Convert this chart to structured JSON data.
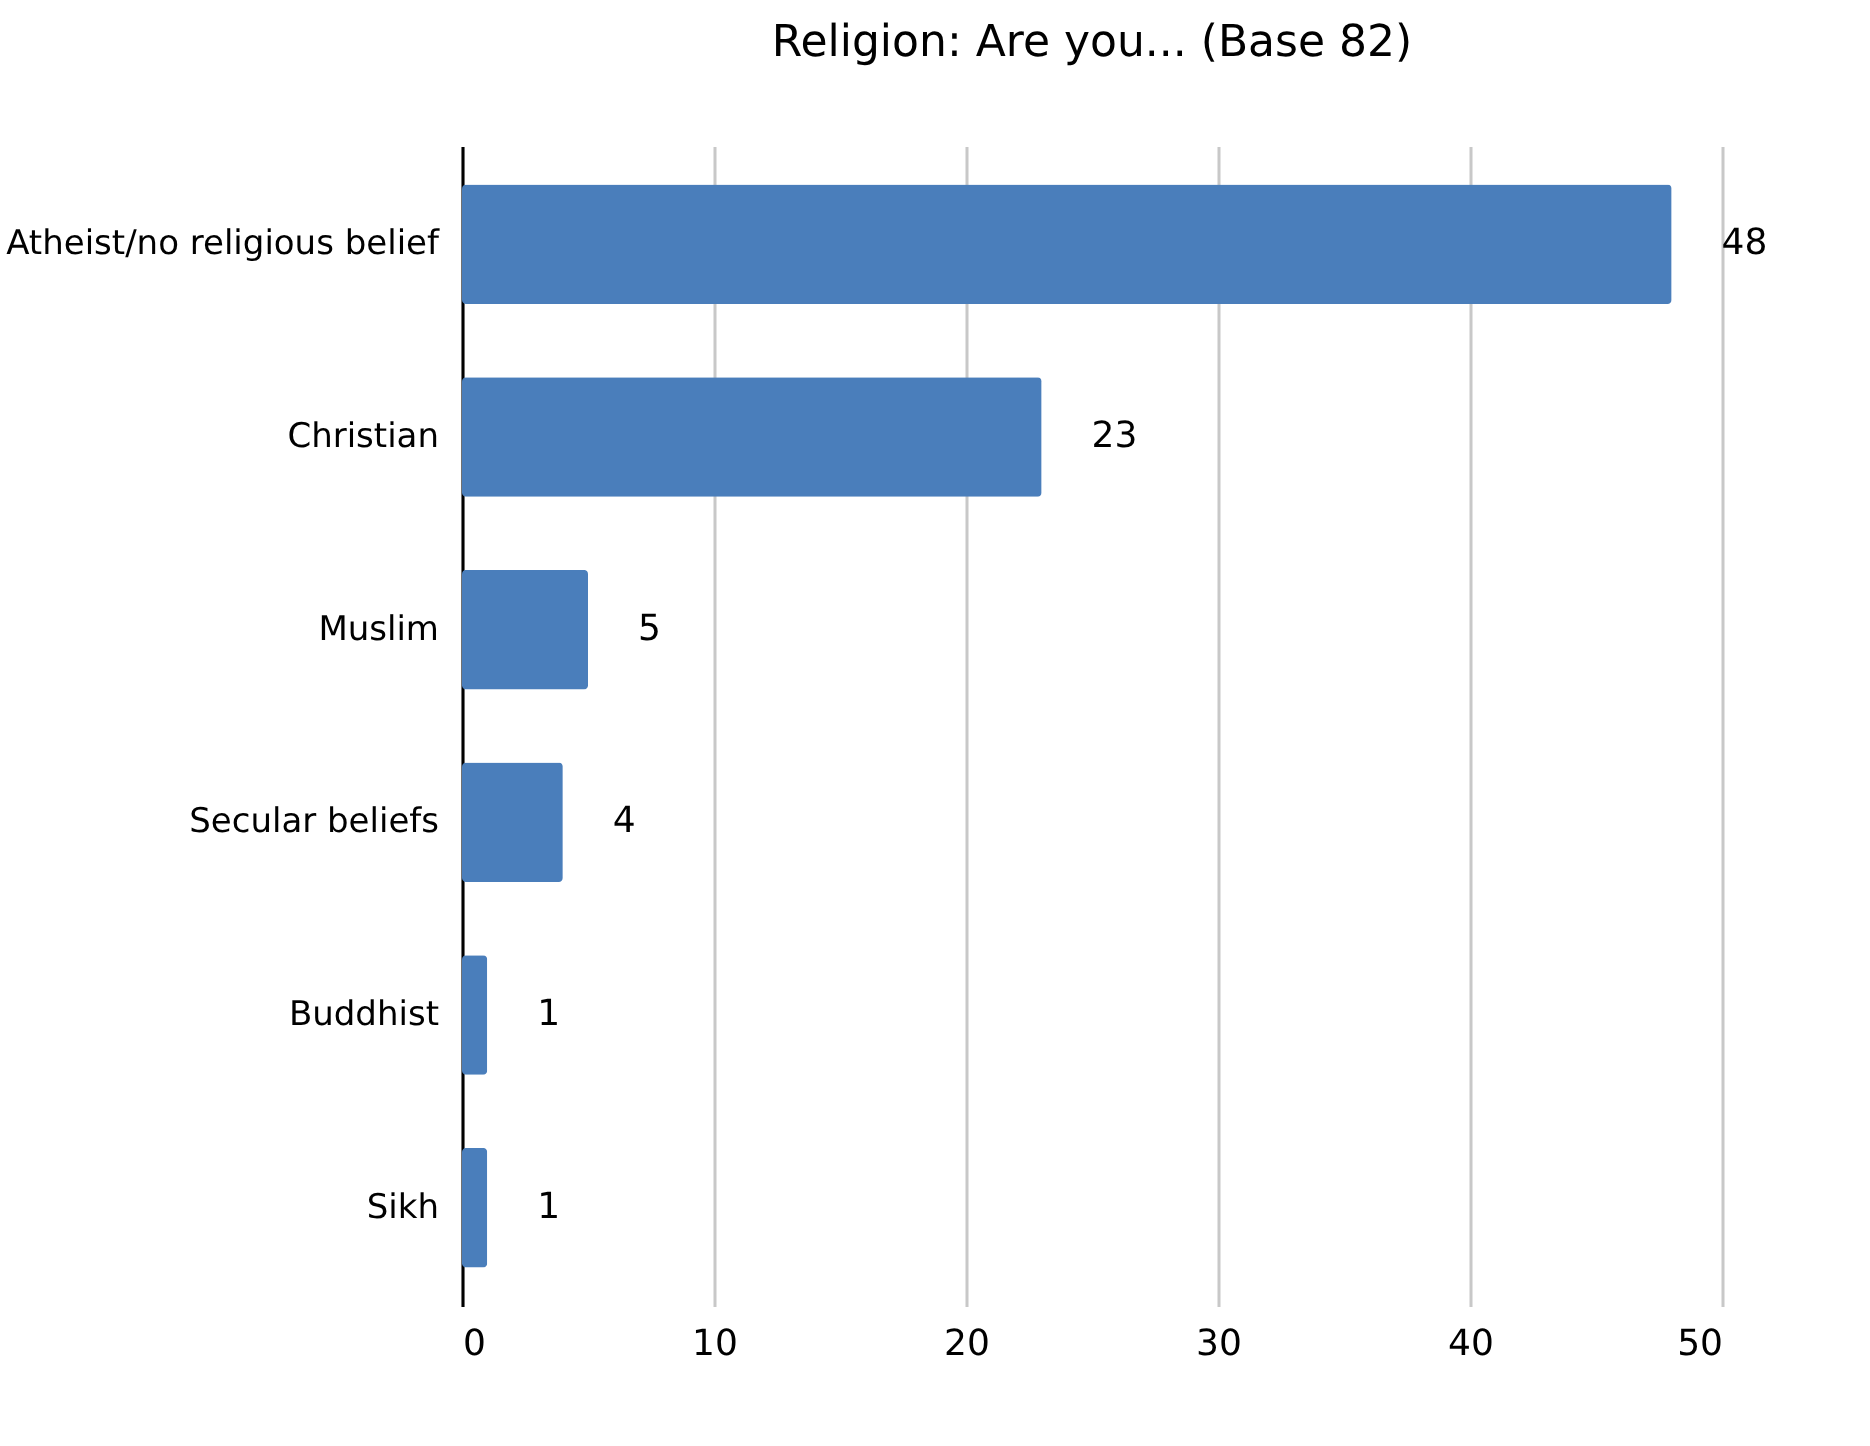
{
  "chart_data": {
    "type": "bar",
    "orientation": "horizontal",
    "title": "Religion: Are you... (Base 82)",
    "categories": [
      "Atheist/no religious belief",
      "Christian",
      "Muslim",
      "Secular beliefs",
      "Buddhist",
      "Sikh"
    ],
    "values": [
      48,
      23,
      5,
      4,
      1,
      1
    ],
    "color": "#4a7ebb",
    "xlim": [
      0,
      50
    ],
    "xticks": [
      0,
      10,
      20,
      30,
      40,
      50
    ],
    "grid": "x",
    "data_labels": true
  }
}
